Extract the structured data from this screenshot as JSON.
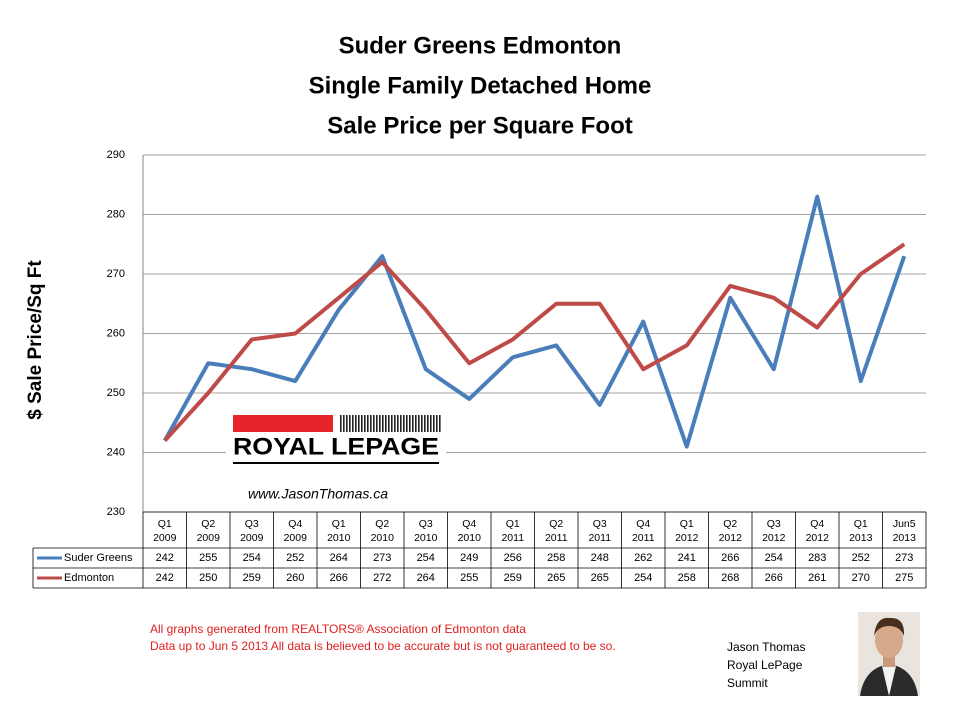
{
  "chart_data": {
    "type": "line",
    "title": [
      "Suder Greens Edmonton",
      "Single Family Detached Home",
      "Sale Price per Square Foot"
    ],
    "y_label": "$ Sale Price/Sq Ft",
    "categories": [
      "Q1\n2009",
      "Q2\n2009",
      "Q3\n2009",
      "Q4\n2009",
      "Q1\n2010",
      "Q2\n2010",
      "Q3\n2010",
      "Q4\n2010",
      "Q1\n2011",
      "Q2\n2011",
      "Q3\n2011",
      "Q4\n2011",
      "Q1\n2012",
      "Q2\n2012",
      "Q3\n2012",
      "Q4\n2012",
      "Q1\n2013",
      "Jun5\n2013"
    ],
    "series": [
      {
        "name": "Suder Greens",
        "color": "#4a7ebb",
        "values": [
          242,
          255,
          254,
          252,
          264,
          273,
          254,
          249,
          256,
          258,
          248,
          262,
          241,
          266,
          254,
          283,
          252,
          273
        ]
      },
      {
        "name": "Edmonton",
        "color": "#be4b48",
        "values": [
          242,
          250,
          259,
          260,
          266,
          272,
          264,
          255,
          259,
          265,
          265,
          254,
          258,
          268,
          266,
          261,
          270,
          275
        ]
      }
    ],
    "ylim": [
      230,
      290
    ],
    "yticks": [
      230,
      240,
      250,
      260,
      270,
      280,
      290
    ],
    "grid": true,
    "logo": {
      "brand": "ROYAL LEPAGE",
      "website": "www.JasonThomas.ca"
    },
    "footnotes": [
      "All graphs generated from REALTORS® Association of Edmonton data",
      "Data up to  Jun 5 2013  All data is believed to be accurate but is not guaranteed to be so."
    ],
    "signature": [
      "Jason Thomas",
      "Royal LePage",
      "Summit"
    ]
  }
}
